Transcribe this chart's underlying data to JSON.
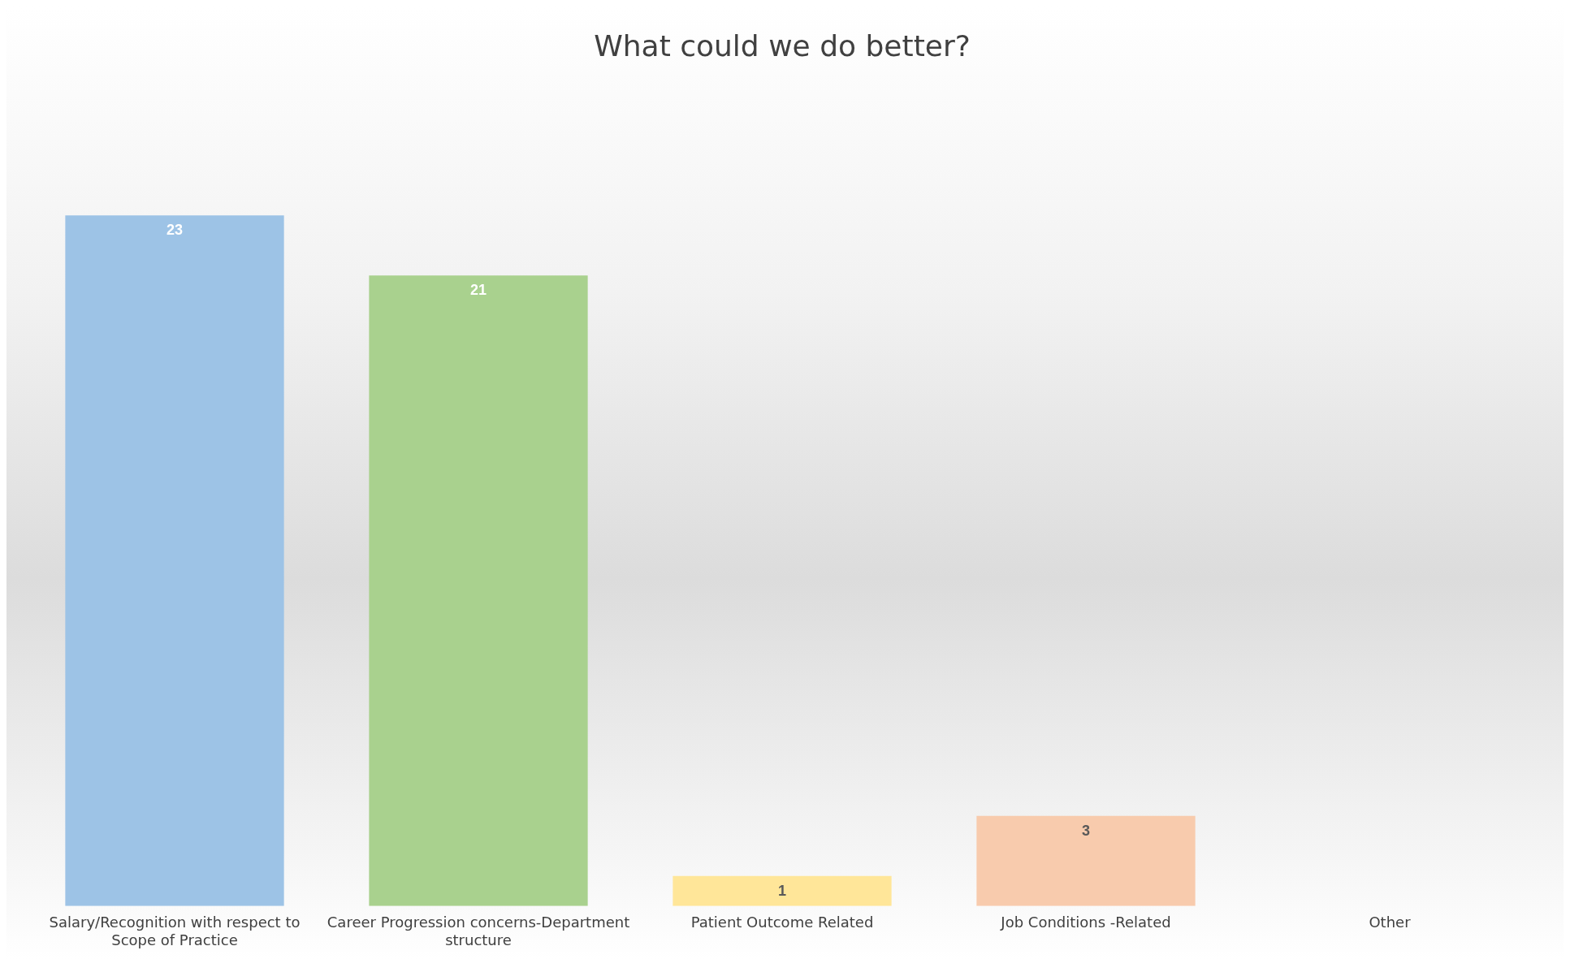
{
  "chart_data": {
    "type": "bar",
    "title": "What could we do better?",
    "categories": [
      "Salary/Recognition with respect to  Scope of Practice",
      "Career Progression concerns-Department structure",
      "Patient Outcome Related",
      "Job Conditions -Related",
      "Other"
    ],
    "values": [
      23,
      21,
      1,
      3,
      0
    ],
    "colors": [
      "#9dc3e6",
      "#a9d18e",
      "#ffe699",
      "#f8cbad",
      "#c9c9c9"
    ],
    "value_labels": [
      "23",
      "21",
      "1",
      "3",
      null
    ],
    "grid": false,
    "legend": false
  }
}
